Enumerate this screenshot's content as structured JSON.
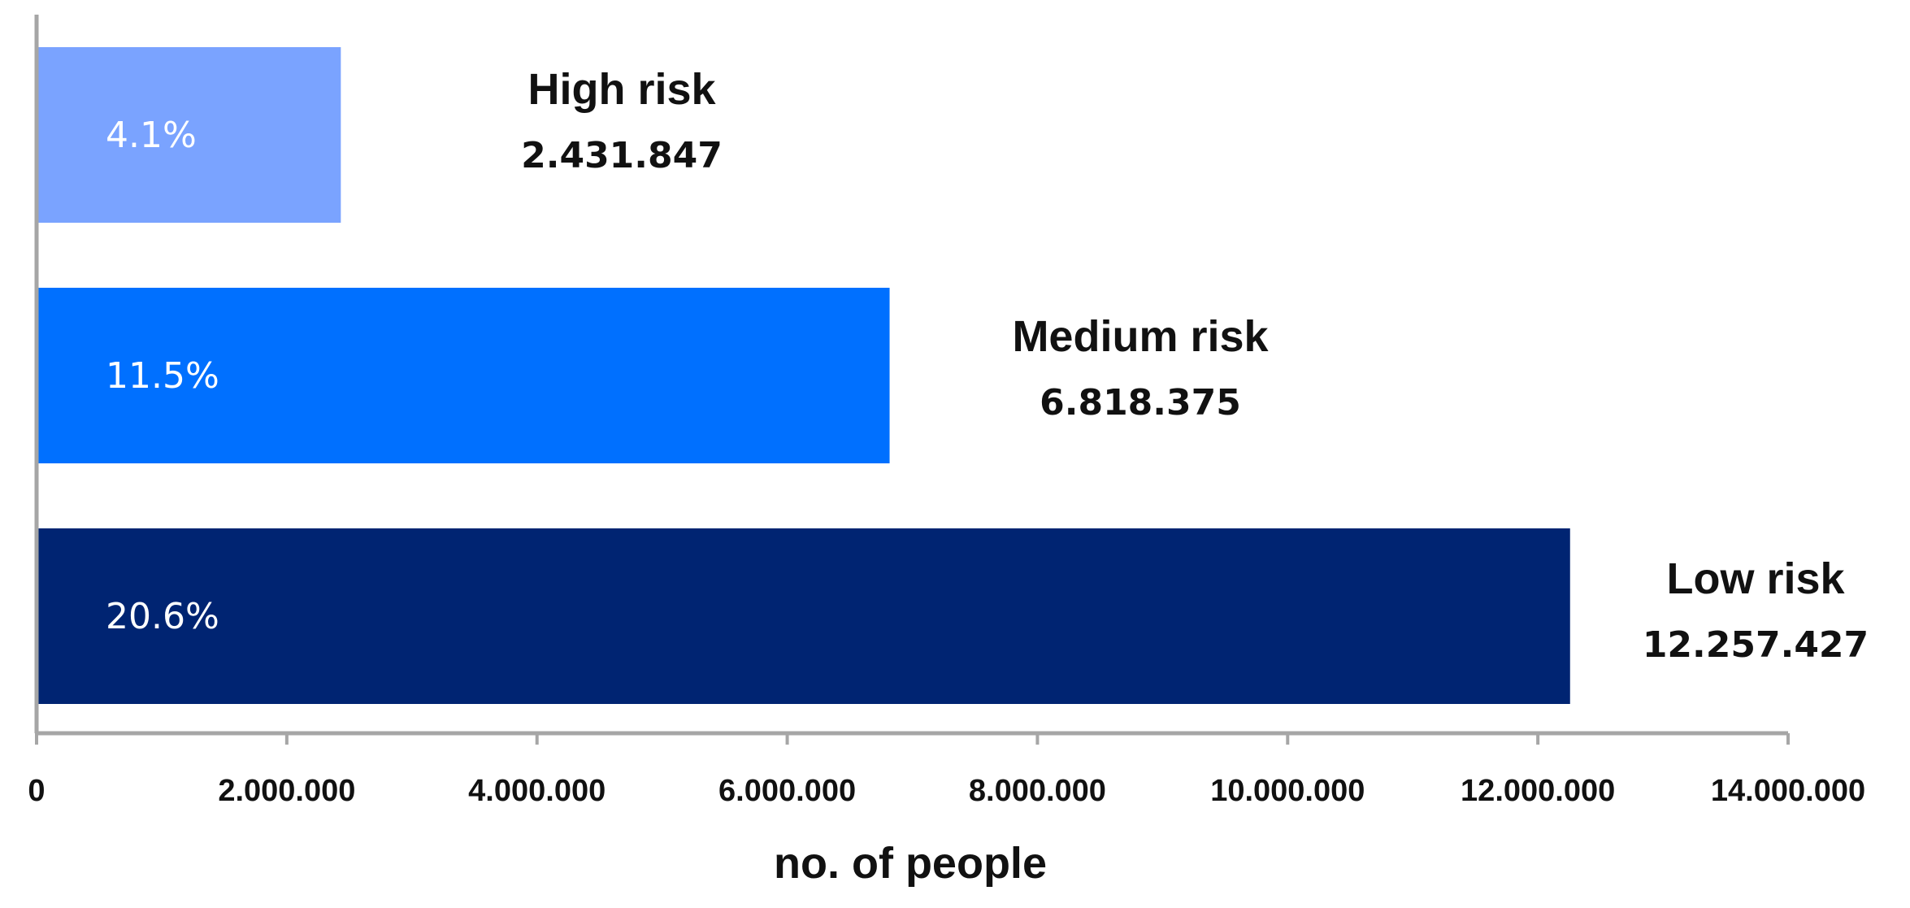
{
  "chart_data": {
    "type": "bar",
    "orientation": "horizontal",
    "xlabel": "no. of people",
    "ylabel": "",
    "xlim": [
      0,
      14000000
    ],
    "grid": false,
    "x_ticks": [
      "0",
      "2.000.000",
      "4.000.000",
      "6.000.000",
      "8.000.000",
      "10.000.000",
      "12.000.000",
      "14.000.000"
    ],
    "x_tick_values": [
      0,
      2000000,
      4000000,
      6000000,
      8000000,
      10000000,
      12000000,
      14000000
    ],
    "bars": [
      {
        "category": "High risk",
        "value": 2431847,
        "value_label": "2.431.847",
        "percent_label": "4.1%",
        "color": "#7aa3ff"
      },
      {
        "category": "Medium risk",
        "value": 6818375,
        "value_label": "6.818.375",
        "percent_label": "11.5%",
        "color": "#0070ff"
      },
      {
        "category": "Low risk",
        "value": 12257427,
        "value_label": "12.257.427",
        "percent_label": "20.6%",
        "color": "#002472"
      }
    ]
  }
}
